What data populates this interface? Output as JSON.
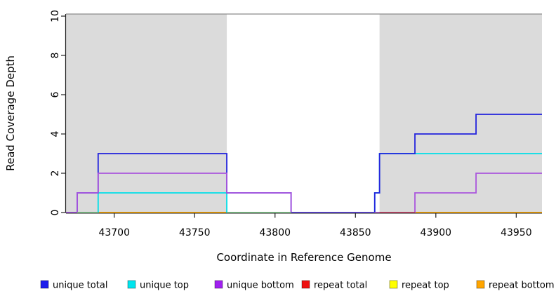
{
  "figure": {
    "background": "#FFFFFF"
  },
  "chart_data": {
    "type": "line",
    "subtype": "step-coverage",
    "title": "",
    "xlabel": "Coordinate in Reference Genome",
    "ylabel": "Read Coverage Depth",
    "xlim": [
      43670,
      43966
    ],
    "ylim": [
      0,
      10
    ],
    "xticks": [
      43700,
      43750,
      43800,
      43850,
      43900,
      43950
    ],
    "yticks": [
      0,
      2,
      4,
      6,
      8,
      10
    ],
    "grid": false,
    "legend_position": "bottom",
    "colors": {
      "axis": "#222222",
      "top_border": "#8C8C8C",
      "shade": "#DBDBDB",
      "text": "#000000"
    },
    "shaded_regions": [
      {
        "x0": 43670,
        "x1": 43770,
        "color": "#DBDBDB",
        "name": "repeat-masked-region-left"
      },
      {
        "x0": 43865,
        "x1": 43966,
        "color": "#DBDBDB",
        "name": "repeat-masked-region-right"
      }
    ],
    "series": [
      {
        "name": "unique total",
        "color": "#2222DD",
        "legend_color": "#1C1CEC",
        "steps": [
          [
            43670,
            0
          ],
          [
            43677,
            1
          ],
          [
            43690,
            3
          ],
          [
            43770,
            1
          ],
          [
            43810,
            0
          ],
          [
            43862,
            1
          ],
          [
            43865,
            3
          ],
          [
            43887,
            4
          ],
          [
            43925,
            5
          ],
          [
            43966,
            5
          ]
        ]
      },
      {
        "name": "unique top",
        "color": "#00DFE8",
        "legend_color": "#00E5EE",
        "steps": [
          [
            43670,
            0
          ],
          [
            43690,
            1
          ],
          [
            43770,
            0
          ],
          [
            43862,
            1
          ],
          [
            43865,
            3
          ],
          [
            43966,
            3
          ]
        ]
      },
      {
        "name": "unique bottom",
        "color": "#AA55DD",
        "legend_color": "#A020F0",
        "steps": [
          [
            43670,
            0
          ],
          [
            43677,
            1
          ],
          [
            43690,
            2
          ],
          [
            43770,
            1
          ],
          [
            43810,
            0
          ],
          [
            43887,
            1
          ],
          [
            43925,
            2
          ],
          [
            43966,
            2
          ]
        ]
      },
      {
        "name": "repeat total",
        "color": "#EE2222",
        "legend_color": "#EE1111",
        "steps": [
          [
            43670,
            0
          ],
          [
            43966,
            0
          ]
        ]
      },
      {
        "name": "repeat top",
        "color": "#FFFF00",
        "legend_color": "#FFFF00",
        "steps": [
          [
            43670,
            0
          ],
          [
            43966,
            0
          ]
        ]
      },
      {
        "name": "repeat bottom",
        "color": "#FFA500",
        "legend_color": "#FFA500",
        "steps": [
          [
            43670,
            0
          ],
          [
            43966,
            0
          ]
        ]
      }
    ],
    "draw_order": [
      3,
      4,
      5,
      1,
      0,
      2
    ],
    "baseline_overlaps": [
      {
        "x0": 43677,
        "x1": 43690,
        "color": "#8FCE8F"
      },
      {
        "x0": 43770,
        "x1": 43810,
        "color": "#8FCE8F"
      },
      {
        "x0": 43810,
        "x1": 43862,
        "color": "#5A43E0"
      },
      {
        "x0": 43865,
        "x1": 43887,
        "color": "#CC4466"
      }
    ]
  }
}
